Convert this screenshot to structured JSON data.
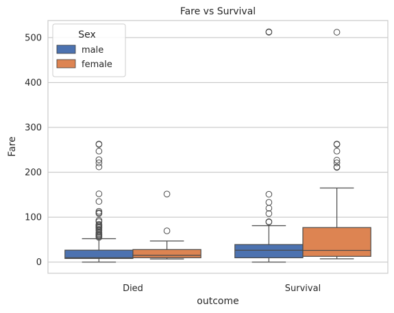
{
  "chart_data": {
    "type": "box",
    "title": "Fare vs Survival",
    "xlabel": "outcome",
    "ylabel": "Fare",
    "categories": [
      "Died",
      "Survival"
    ],
    "ylim": [
      -25,
      538
    ],
    "yticks": [
      0,
      100,
      200,
      300,
      400,
      500
    ],
    "grid": "horizontal",
    "legend": {
      "title": "Sex",
      "placement": "top-left"
    },
    "series": [
      {
        "name": "male",
        "color": "#4c72b0",
        "boxes": [
          {
            "category": "Died",
            "whislo": 0,
            "q1": 7.9,
            "med": 9.5,
            "q3": 26.5,
            "whishi": 52,
            "fliers": [
              55,
              57,
              59,
              61,
              63,
              66,
              70,
              73,
              76,
              78,
              80,
              82,
              84,
              90,
              93,
              108,
              110,
              113,
              135,
              152,
              212,
              221,
              228,
              247,
              262,
              263
            ]
          },
          {
            "category": "Survival",
            "whislo": 0,
            "q1": 9.5,
            "med": 26.3,
            "q3": 39,
            "whishi": 81,
            "fliers": [
              89,
              90,
              108,
              120,
              133,
              151,
              512,
              513
            ]
          }
        ]
      },
      {
        "name": "female",
        "color": "#dd8452",
        "boxes": [
          {
            "category": "Died",
            "whislo": 6.8,
            "q1": 9.6,
            "med": 15.2,
            "q3": 27.9,
            "whishi": 46.9,
            "fliers": [
              69.5,
              151.5
            ]
          },
          {
            "category": "Survival",
            "whislo": 7.2,
            "q1": 12.7,
            "med": 26,
            "q3": 76.9,
            "whishi": 164.9,
            "fliers": [
              211,
              212,
              221,
              227,
              247,
              262,
              263,
              512
            ]
          }
        ]
      }
    ]
  }
}
